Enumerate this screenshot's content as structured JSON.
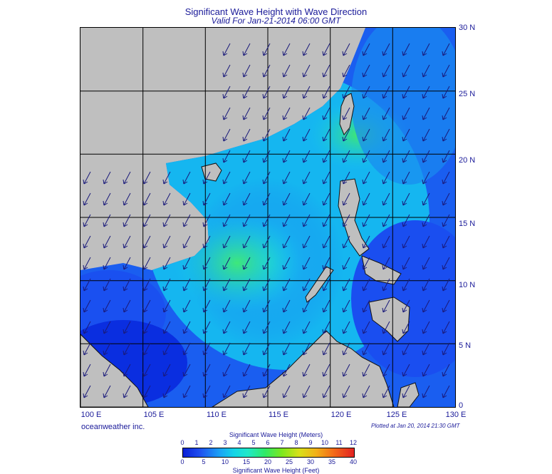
{
  "header": {
    "title": "Significant Wave Height with Wave Direction",
    "valid": "Valid For Jan-21-2014 06:00 GMT"
  },
  "map": {
    "lon_labels": [
      "100 E",
      "105 E",
      "110 E",
      "115 E",
      "120 E",
      "125 E",
      "130 E"
    ],
    "lat_labels": [
      "30 N",
      "25 N",
      "20 N",
      "15 N",
      "10 N",
      "5 N",
      "0"
    ],
    "lon_range": [
      100,
      130
    ],
    "lat_range": [
      0,
      30
    ],
    "land_color": "#bfbfbf",
    "water_low_color": "#1a4ef0",
    "water_mid_color": "#14c8f0",
    "water_high_color": "#2fe88a",
    "arrow_color": "#1a1a7a",
    "wave_direction": "from northeast"
  },
  "footer": {
    "brand": "oceanweather inc.",
    "plotted": "Plotted at Jan 20, 2014 21:30 GMT"
  },
  "colorbar": {
    "meters_title": "Significant Wave Height (Meters)",
    "feet_title": "Significant Wave Height (Feet)",
    "meters_ticks": [
      "0",
      "1",
      "2",
      "3",
      "4",
      "5",
      "6",
      "7",
      "8",
      "9",
      "10",
      "11",
      "12"
    ],
    "feet_ticks": [
      "0",
      "5",
      "10",
      "15",
      "20",
      "25",
      "30",
      "35",
      "40"
    ]
  }
}
